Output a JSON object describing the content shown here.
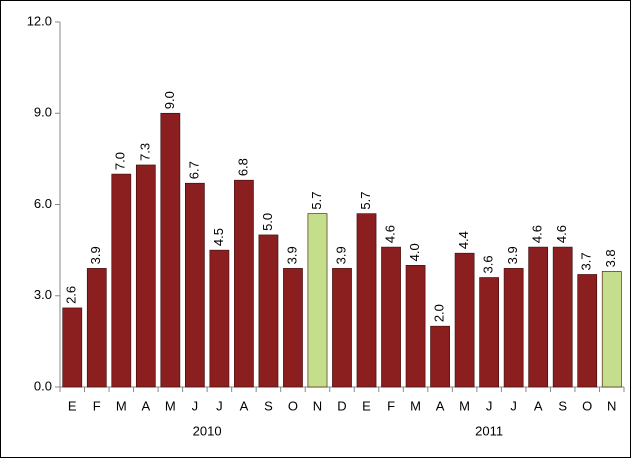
{
  "chart_data": {
    "type": "bar",
    "groups": [
      {
        "label": "2010",
        "categories": [
          "E",
          "F",
          "M",
          "A",
          "M",
          "J",
          "J",
          "A",
          "S",
          "O",
          "N",
          "D"
        ]
      },
      {
        "label": "2011",
        "categories": [
          "E",
          "F",
          "M",
          "A",
          "M",
          "J",
          "J",
          "A",
          "S",
          "O",
          "N"
        ]
      }
    ],
    "values": [
      2.6,
      3.9,
      7.0,
      7.3,
      9.0,
      6.7,
      4.5,
      6.8,
      5.0,
      3.9,
      5.7,
      3.9,
      5.7,
      4.6,
      4.0,
      2.0,
      4.4,
      3.6,
      3.9,
      4.6,
      4.6,
      3.7,
      3.8
    ],
    "value_labels": [
      "2.6",
      "3.9",
      "7.0",
      "7.3",
      "9.0",
      "6.7",
      "4.5",
      "6.8",
      "5.0",
      "3.9",
      "5.7",
      "3.9",
      "5.7",
      "4.6",
      "4.0",
      "2.0",
      "4.4",
      "3.6",
      "3.9",
      "4.6",
      "4.6",
      "3.7",
      "3.8"
    ],
    "colors": [
      "#8b1e1e",
      "#8b1e1e",
      "#8b1e1e",
      "#8b1e1e",
      "#8b1e1e",
      "#8b1e1e",
      "#8b1e1e",
      "#8b1e1e",
      "#8b1e1e",
      "#8b1e1e",
      "#c4de8c",
      "#8b1e1e",
      "#8b1e1e",
      "#8b1e1e",
      "#8b1e1e",
      "#8b1e1e",
      "#8b1e1e",
      "#8b1e1e",
      "#8b1e1e",
      "#8b1e1e",
      "#8b1e1e",
      "#8b1e1e",
      "#c4de8c"
    ],
    "ylim": [
      0,
      12
    ],
    "yticks": [
      {
        "value": 0,
        "label": "0.0"
      },
      {
        "value": 3,
        "label": "3.0"
      },
      {
        "value": 6,
        "label": "6.0"
      },
      {
        "value": 9,
        "label": "9.0"
      },
      {
        "value": 12,
        "label": "12.0"
      }
    ],
    "grid": false
  }
}
